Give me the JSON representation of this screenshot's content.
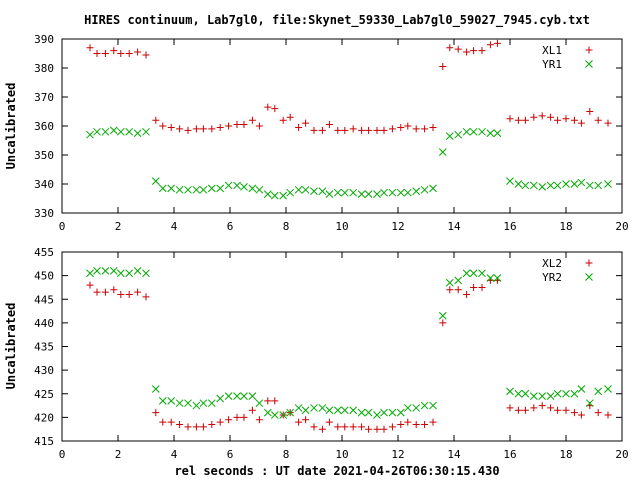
{
  "title": "HIRES continuum, Lab7gl0, file:Skynet_59330_Lab7gl0_59027_7945.cyb.txt",
  "xlabel": "rel seconds : UT date 2021-04-26T06:30:15.430",
  "colors": {
    "red": "#cc0000",
    "green": "#00aa00"
  },
  "chart_data": [
    {
      "type": "scatter",
      "ylabel": "Uncalibrated",
      "xlim": [
        0,
        20
      ],
      "ylim": [
        330,
        390
      ],
      "xticks": [
        0,
        2,
        4,
        6,
        8,
        10,
        12,
        14,
        16,
        18,
        20
      ],
      "yticks": [
        330,
        340,
        350,
        360,
        370,
        380,
        390
      ],
      "legend": "top-right",
      "series": [
        {
          "name": "XL1",
          "marker": "plus",
          "color": "#cc0000",
          "points": [
            [
              1.0,
              387
            ],
            [
              1.25,
              385
            ],
            [
              1.55,
              385
            ],
            [
              1.85,
              386
            ],
            [
              2.1,
              385
            ],
            [
              2.4,
              385
            ],
            [
              2.7,
              385.5
            ],
            [
              3.0,
              384.5
            ],
            [
              3.35,
              362
            ],
            [
              3.6,
              360
            ],
            [
              3.9,
              359.5
            ],
            [
              4.2,
              359
            ],
            [
              4.5,
              358.5
            ],
            [
              4.8,
              359
            ],
            [
              5.05,
              359
            ],
            [
              5.35,
              359
            ],
            [
              5.65,
              359.5
            ],
            [
              5.95,
              360
            ],
            [
              6.25,
              360.5
            ],
            [
              6.5,
              360.5
            ],
            [
              6.8,
              362
            ],
            [
              7.05,
              360
            ],
            [
              7.35,
              366.5
            ],
            [
              7.6,
              366
            ],
            [
              7.9,
              362
            ],
            [
              8.15,
              363
            ],
            [
              8.45,
              359.5
            ],
            [
              8.7,
              361
            ],
            [
              9.0,
              358.5
            ],
            [
              9.3,
              358.5
            ],
            [
              9.55,
              360.5
            ],
            [
              9.85,
              358.5
            ],
            [
              10.1,
              358.5
            ],
            [
              10.4,
              359
            ],
            [
              10.7,
              358.5
            ],
            [
              10.95,
              358.5
            ],
            [
              11.25,
              358.5
            ],
            [
              11.5,
              358.5
            ],
            [
              11.8,
              359
            ],
            [
              12.1,
              359.5
            ],
            [
              12.35,
              360
            ],
            [
              12.65,
              359
            ],
            [
              12.95,
              359
            ],
            [
              13.25,
              359.5
            ],
            [
              13.6,
              380.5
            ],
            [
              13.85,
              387
            ],
            [
              14.15,
              386.5
            ],
            [
              14.45,
              385.5
            ],
            [
              14.7,
              386
            ],
            [
              15.0,
              386
            ],
            [
              15.3,
              388
            ],
            [
              15.55,
              388.5
            ],
            [
              16.0,
              362.5
            ],
            [
              16.3,
              362
            ],
            [
              16.55,
              362
            ],
            [
              16.85,
              363
            ],
            [
              17.15,
              363.5
            ],
            [
              17.45,
              363
            ],
            [
              17.7,
              362
            ],
            [
              18.0,
              362.5
            ],
            [
              18.3,
              362
            ],
            [
              18.55,
              361
            ],
            [
              18.85,
              365
            ],
            [
              19.15,
              362
            ],
            [
              19.5,
              361
            ]
          ]
        },
        {
          "name": "YR1",
          "marker": "cross",
          "color": "#00aa00",
          "points": [
            [
              1.0,
              357
            ],
            [
              1.25,
              358
            ],
            [
              1.55,
              358
            ],
            [
              1.85,
              358.5
            ],
            [
              2.1,
              358
            ],
            [
              2.4,
              358
            ],
            [
              2.7,
              357.5
            ],
            [
              3.0,
              358
            ],
            [
              3.35,
              341
            ],
            [
              3.6,
              338.5
            ],
            [
              3.9,
              338.5
            ],
            [
              4.2,
              338
            ],
            [
              4.5,
              338
            ],
            [
              4.8,
              338
            ],
            [
              5.05,
              338
            ],
            [
              5.35,
              338.5
            ],
            [
              5.65,
              338.5
            ],
            [
              5.95,
              339.5
            ],
            [
              6.25,
              339.5
            ],
            [
              6.5,
              339
            ],
            [
              6.8,
              338.5
            ],
            [
              7.05,
              338
            ],
            [
              7.35,
              336.5
            ],
            [
              7.6,
              336
            ],
            [
              7.9,
              336
            ],
            [
              8.15,
              337
            ],
            [
              8.45,
              338
            ],
            [
              8.7,
              338
            ],
            [
              9.0,
              337.5
            ],
            [
              9.3,
              337.5
            ],
            [
              9.55,
              336.5
            ],
            [
              9.85,
              337
            ],
            [
              10.1,
              337
            ],
            [
              10.4,
              337
            ],
            [
              10.7,
              336.5
            ],
            [
              10.95,
              336.5
            ],
            [
              11.25,
              336.5
            ],
            [
              11.5,
              337
            ],
            [
              11.8,
              337
            ],
            [
              12.1,
              337
            ],
            [
              12.35,
              337
            ],
            [
              12.65,
              337.5
            ],
            [
              12.95,
              338
            ],
            [
              13.25,
              338.5
            ],
            [
              13.6,
              351
            ],
            [
              13.85,
              356.5
            ],
            [
              14.15,
              357
            ],
            [
              14.45,
              358
            ],
            [
              14.7,
              358
            ],
            [
              15.0,
              358
            ],
            [
              15.3,
              357.5
            ],
            [
              15.55,
              357.5
            ],
            [
              16.0,
              341
            ],
            [
              16.3,
              340
            ],
            [
              16.55,
              339.5
            ],
            [
              16.85,
              339.5
            ],
            [
              17.15,
              339
            ],
            [
              17.45,
              339.5
            ],
            [
              17.7,
              339.5
            ],
            [
              18.0,
              340
            ],
            [
              18.3,
              340
            ],
            [
              18.55,
              340.5
            ],
            [
              18.85,
              339.5
            ],
            [
              19.15,
              339.5
            ],
            [
              19.5,
              340
            ]
          ]
        }
      ]
    },
    {
      "type": "scatter",
      "ylabel": "Uncalibrated",
      "xlim": [
        0,
        20
      ],
      "ylim": [
        415,
        455
      ],
      "xticks": [
        0,
        2,
        4,
        6,
        8,
        10,
        12,
        14,
        16,
        18,
        20
      ],
      "yticks": [
        415,
        420,
        425,
        430,
        435,
        440,
        445,
        450,
        455
      ],
      "legend": "top-right",
      "series": [
        {
          "name": "XL2",
          "marker": "plus",
          "color": "#cc0000",
          "points": [
            [
              1.0,
              448
            ],
            [
              1.25,
              446.5
            ],
            [
              1.55,
              446.5
            ],
            [
              1.85,
              447
            ],
            [
              2.1,
              446
            ],
            [
              2.4,
              446
            ],
            [
              2.7,
              446.5
            ],
            [
              3.0,
              445.5
            ],
            [
              3.35,
              421
            ],
            [
              3.6,
              419
            ],
            [
              3.9,
              419
            ],
            [
              4.2,
              418.5
            ],
            [
              4.5,
              418
            ],
            [
              4.8,
              418
            ],
            [
              5.05,
              418
            ],
            [
              5.35,
              418.5
            ],
            [
              5.65,
              419
            ],
            [
              5.95,
              419.5
            ],
            [
              6.25,
              420
            ],
            [
              6.5,
              420
            ],
            [
              6.8,
              421.5
            ],
            [
              7.05,
              419.5
            ],
            [
              7.35,
              423.5
            ],
            [
              7.6,
              423.5
            ],
            [
              7.9,
              420.5
            ],
            [
              8.15,
              421
            ],
            [
              8.45,
              419
            ],
            [
              8.7,
              419.5
            ],
            [
              9.0,
              418
            ],
            [
              9.3,
              417.5
            ],
            [
              9.55,
              419
            ],
            [
              9.85,
              418
            ],
            [
              10.1,
              418
            ],
            [
              10.4,
              418
            ],
            [
              10.7,
              418
            ],
            [
              10.95,
              417.5
            ],
            [
              11.25,
              417.5
            ],
            [
              11.5,
              417.5
            ],
            [
              11.8,
              418
            ],
            [
              12.1,
              418.5
            ],
            [
              12.35,
              419
            ],
            [
              12.65,
              418.5
            ],
            [
              12.95,
              418.5
            ],
            [
              13.25,
              419
            ],
            [
              13.6,
              440
            ],
            [
              13.85,
              447
            ],
            [
              14.15,
              447
            ],
            [
              14.45,
              446
            ],
            [
              14.7,
              447.5
            ],
            [
              15.0,
              447.5
            ],
            [
              15.3,
              449
            ],
            [
              15.55,
              449
            ],
            [
              16.0,
              422
            ],
            [
              16.3,
              421.5
            ],
            [
              16.55,
              421.5
            ],
            [
              16.85,
              422
            ],
            [
              17.15,
              422.5
            ],
            [
              17.45,
              422
            ],
            [
              17.7,
              421.5
            ],
            [
              18.0,
              421.5
            ],
            [
              18.3,
              421
            ],
            [
              18.55,
              420.5
            ],
            [
              18.85,
              422.5
            ],
            [
              19.15,
              421
            ],
            [
              19.5,
              420.5
            ]
          ]
        },
        {
          "name": "YR2",
          "marker": "cross",
          "color": "#00aa00",
          "points": [
            [
              1.0,
              450.5
            ],
            [
              1.25,
              451
            ],
            [
              1.55,
              451
            ],
            [
              1.85,
              451
            ],
            [
              2.1,
              450.5
            ],
            [
              2.4,
              450.5
            ],
            [
              2.7,
              451
            ],
            [
              3.0,
              450.5
            ],
            [
              3.35,
              426
            ],
            [
              3.6,
              423.5
            ],
            [
              3.9,
              423.5
            ],
            [
              4.2,
              423
            ],
            [
              4.5,
              423
            ],
            [
              4.8,
              422.5
            ],
            [
              5.05,
              423
            ],
            [
              5.35,
              423
            ],
            [
              5.65,
              424
            ],
            [
              5.95,
              424.5
            ],
            [
              6.25,
              424.5
            ],
            [
              6.5,
              424.5
            ],
            [
              6.8,
              424.5
            ],
            [
              7.05,
              423
            ],
            [
              7.35,
              421
            ],
            [
              7.6,
              420.5
            ],
            [
              7.9,
              420.5
            ],
            [
              8.15,
              421
            ],
            [
              8.45,
              422
            ],
            [
              8.7,
              421.5
            ],
            [
              9.0,
              422
            ],
            [
              9.3,
              422
            ],
            [
              9.55,
              421.5
            ],
            [
              9.85,
              421.5
            ],
            [
              10.1,
              421.5
            ],
            [
              10.4,
              421.5
            ],
            [
              10.7,
              421
            ],
            [
              10.95,
              421
            ],
            [
              11.25,
              420.5
            ],
            [
              11.5,
              421
            ],
            [
              11.8,
              421
            ],
            [
              12.1,
              421
            ],
            [
              12.35,
              422
            ],
            [
              12.65,
              422
            ],
            [
              12.95,
              422.5
            ],
            [
              13.25,
              422.5
            ],
            [
              13.6,
              441.5
            ],
            [
              13.85,
              448.5
            ],
            [
              14.15,
              449
            ],
            [
              14.45,
              450.5
            ],
            [
              14.7,
              450.5
            ],
            [
              15.0,
              450.5
            ],
            [
              15.3,
              449.5
            ],
            [
              15.55,
              449.5
            ],
            [
              16.0,
              425.5
            ],
            [
              16.3,
              425
            ],
            [
              16.55,
              425
            ],
            [
              16.85,
              424.5
            ],
            [
              17.15,
              424.5
            ],
            [
              17.45,
              424.5
            ],
            [
              17.7,
              425
            ],
            [
              18.0,
              425
            ],
            [
              18.3,
              425
            ],
            [
              18.55,
              426
            ],
            [
              18.85,
              423
            ],
            [
              19.15,
              425.5
            ],
            [
              19.5,
              426
            ]
          ]
        }
      ]
    }
  ]
}
